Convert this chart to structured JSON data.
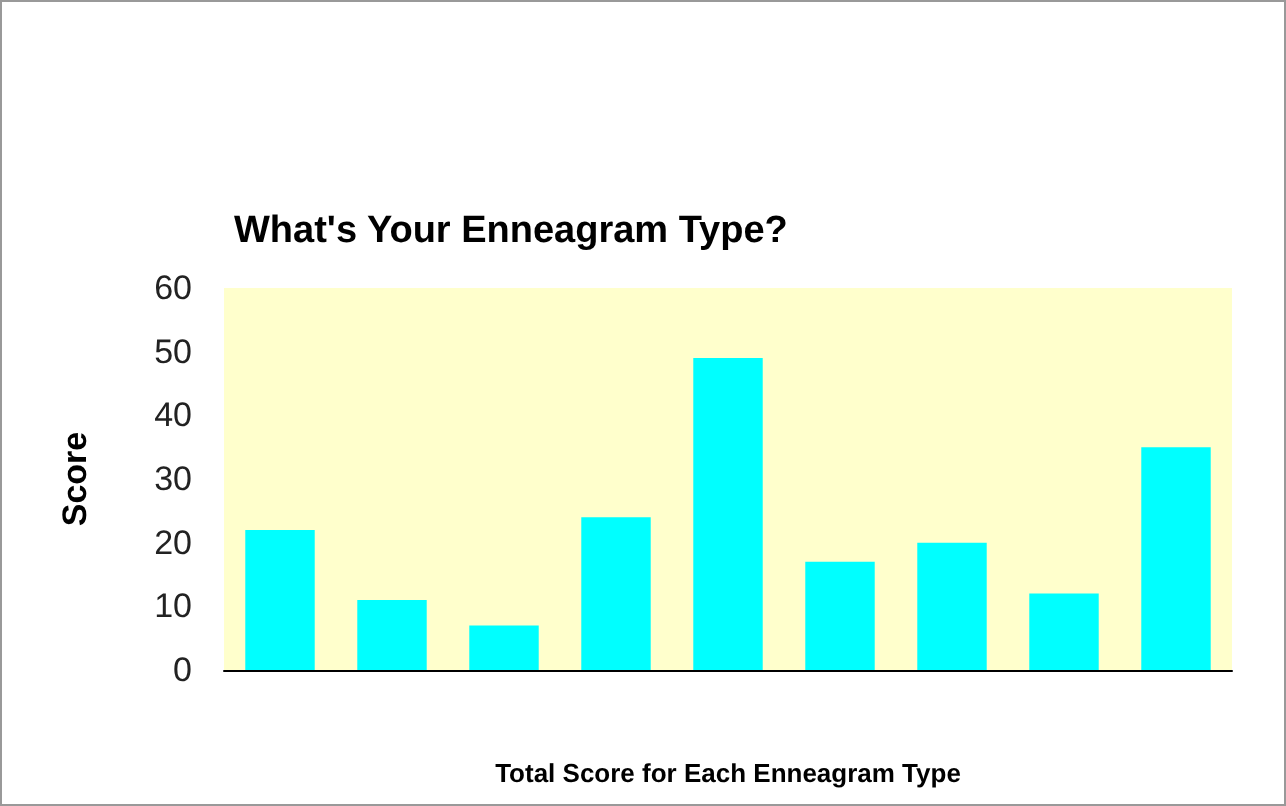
{
  "chart_data": {
    "type": "bar",
    "title": "What's Your Enneagram Type?",
    "xlabel": "Total Score for Each Enneagram Type",
    "ylabel": "Score",
    "categories": [
      null,
      null,
      null,
      null,
      null,
      null,
      null,
      null,
      null
    ],
    "values": [
      22,
      11,
      7,
      24,
      49,
      17,
      20,
      12,
      35
    ],
    "color": "#00ffff",
    "ylim": [
      0,
      60
    ],
    "yticks": [
      0,
      10,
      20,
      30,
      40,
      50,
      60
    ],
    "grid": false
  }
}
